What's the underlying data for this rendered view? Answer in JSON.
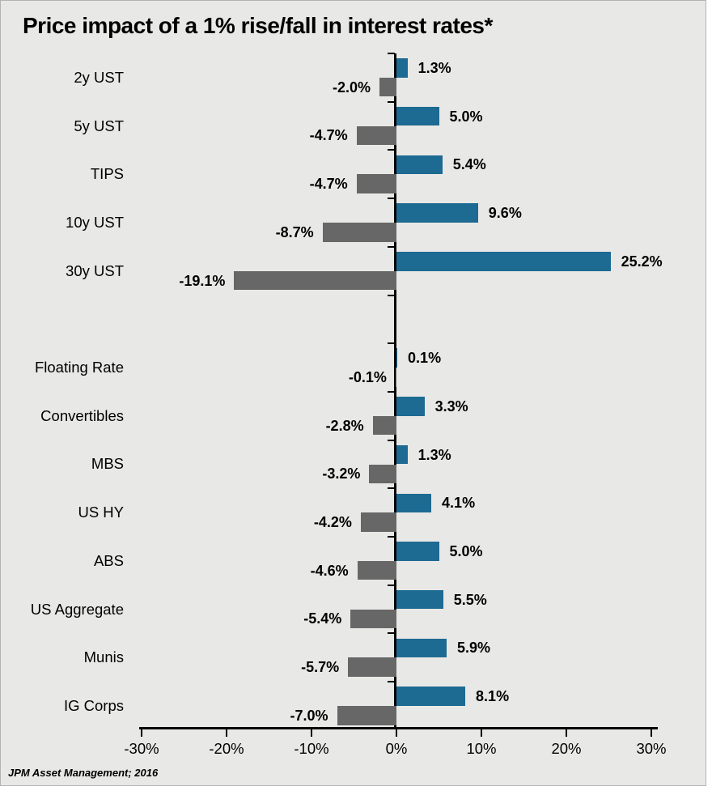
{
  "title": "Price impact of a 1% rise/fall in interest rates*",
  "source_note": "JPM Asset Management; 2016",
  "chart_data": {
    "type": "bar",
    "orientation": "horizontal",
    "title": "Price impact of a 1% rise/fall in interest rates*",
    "source_note": "JPM Asset Management; 2016",
    "xlim": [
      -30,
      30
    ],
    "x_tick_values": [
      -30,
      -20,
      -10,
      0,
      10,
      20,
      30
    ],
    "x_tick_labels": [
      "-30%",
      "-20%",
      "-10%",
      "0%",
      "10%",
      "20%",
      "30%"
    ],
    "grid": false,
    "legend": false,
    "gap_after_index": 4,
    "categories": [
      "2y UST",
      "5y UST",
      "TIPS",
      "10y UST",
      "30y UST",
      "Floating Rate",
      "Convertibles",
      "MBS",
      "US HY",
      "ABS",
      "US Aggregate",
      "Munis",
      "IG Corps"
    ],
    "series": [
      {
        "name": "positive_impact",
        "color": "#1d6a92",
        "values": [
          1.3,
          5.0,
          5.4,
          9.6,
          25.2,
          0.1,
          3.3,
          1.3,
          4.1,
          5.0,
          5.5,
          5.9,
          8.1
        ]
      },
      {
        "name": "negative_impact",
        "color": "#676767",
        "values": [
          -2.0,
          -4.7,
          -4.7,
          -8.7,
          -19.1,
          -0.1,
          -2.8,
          -3.2,
          -4.2,
          -4.6,
          -5.4,
          -5.7,
          -7.0
        ]
      }
    ],
    "labels": {
      "positive": [
        "1.3%",
        "5.0%",
        "5.4%",
        "9.6%",
        "25.2%",
        "0.1%",
        "3.3%",
        "1.3%",
        "4.1%",
        "5.0%",
        "5.5%",
        "5.9%",
        "8.1%"
      ],
      "negative": [
        "-2.0%",
        "-4.7%",
        "-4.7%",
        "-8.7%",
        "-19.1%",
        "-0.1%",
        "-2.8%",
        "-3.2%",
        "-4.2%",
        "-4.6%",
        "-5.4%",
        "-5.7%",
        "-7.0%"
      ]
    },
    "colors": {
      "positive_bar": "#1d6a92",
      "negative_bar": "#676767",
      "panel_background": "#e8e8e6",
      "axis": "#000000",
      "text": "#000000"
    }
  }
}
